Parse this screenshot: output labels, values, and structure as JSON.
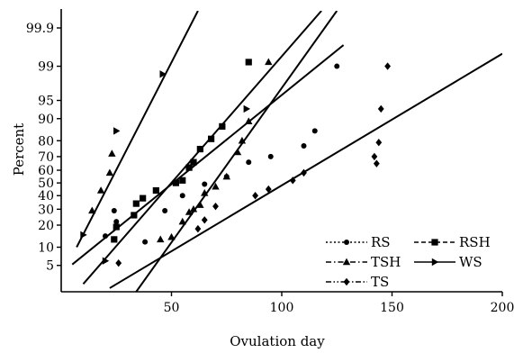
{
  "chart_data": {
    "type": "scatter",
    "title": "",
    "xlabel": "Ovulation day",
    "ylabel": "Percent",
    "xlim": [
      0,
      200
    ],
    "y_scale": "probability",
    "ylim": [
      1.5,
      99.97
    ],
    "x_ticks": [
      50,
      100,
      150,
      200
    ],
    "x_tick_labels": [
      "50",
      "100",
      "150",
      "200"
    ],
    "y_ticks": [
      5,
      10,
      20,
      30,
      40,
      50,
      60,
      70,
      80,
      90,
      95,
      99,
      99.9
    ],
    "y_tick_labels": [
      "5",
      "10",
      "20",
      "30",
      "40",
      "50",
      "60",
      "70",
      "80",
      "90",
      "95",
      "99",
      "99.9"
    ],
    "grid": false,
    "legend_position": "bottom-right",
    "series": [
      {
        "name": "RS",
        "marker": "circle",
        "line_style": "dotted",
        "points": [
          [
            20,
            14.5
          ],
          [
            24,
            29
          ],
          [
            25,
            22
          ],
          [
            38,
            12
          ],
          [
            47,
            29
          ],
          [
            55,
            40
          ],
          [
            65,
            49
          ],
          [
            75,
            55
          ],
          [
            85,
            66
          ],
          [
            95,
            70
          ],
          [
            110,
            77
          ],
          [
            115,
            85
          ],
          [
            125,
            99
          ]
        ],
        "fit": [
          [
            5,
            5.2
          ],
          [
            128,
            99.7
          ]
        ]
      },
      {
        "name": "RSH",
        "marker": "square",
        "line_style": "dashed",
        "points": [
          [
            24,
            13
          ],
          [
            25,
            19
          ],
          [
            33,
            26
          ],
          [
            34,
            34
          ],
          [
            37,
            38
          ],
          [
            43,
            44
          ],
          [
            52,
            50
          ],
          [
            55,
            52
          ],
          [
            58,
            62
          ],
          [
            60,
            66
          ],
          [
            63,
            75
          ],
          [
            68,
            81
          ],
          [
            73,
            87
          ],
          [
            85,
            99.2
          ]
        ],
        "fit": [
          [
            10,
            2.2
          ],
          [
            118,
            99.97
          ]
        ]
      },
      {
        "name": "TSH",
        "marker": "triangle",
        "line_style": "dash-dot",
        "points": [
          [
            14,
            29
          ],
          [
            18,
            44
          ],
          [
            22,
            58
          ],
          [
            23,
            72
          ],
          [
            45,
            13
          ],
          [
            50,
            14
          ],
          [
            55,
            22
          ],
          [
            58,
            28
          ],
          [
            60,
            30
          ],
          [
            63,
            33
          ],
          [
            65,
            42
          ],
          [
            70,
            47
          ],
          [
            75,
            55
          ],
          [
            80,
            73
          ],
          [
            82,
            80
          ],
          [
            85,
            89
          ],
          [
            94,
            99.2
          ]
        ],
        "fit": [
          [
            34,
            1.5
          ],
          [
            125,
            99.97
          ]
        ]
      },
      {
        "name": "WS",
        "marker": "arrow-right",
        "line_style": "solid",
        "points": [
          [
            10,
            15
          ],
          [
            20,
            6
          ],
          [
            25,
            85
          ],
          [
            46,
            98.5
          ],
          [
            84,
            93
          ]
        ],
        "fit": [
          [
            7,
            10
          ],
          [
            62,
            99.97
          ]
        ]
      },
      {
        "name": "TS",
        "marker": "diamond",
        "line_style": "dash-dot-dot",
        "points": [
          [
            26,
            5.5
          ],
          [
            62,
            18
          ],
          [
            65,
            23
          ],
          [
            70,
            32
          ],
          [
            88,
            40
          ],
          [
            94,
            45
          ],
          [
            105,
            52
          ],
          [
            110,
            58
          ],
          [
            142,
            70
          ],
          [
            143,
            65
          ],
          [
            144,
            79
          ],
          [
            145,
            93
          ],
          [
            148,
            99
          ]
        ],
        "fit": [
          [
            22,
            1.8
          ],
          [
            200,
            99.5
          ]
        ]
      }
    ]
  }
}
